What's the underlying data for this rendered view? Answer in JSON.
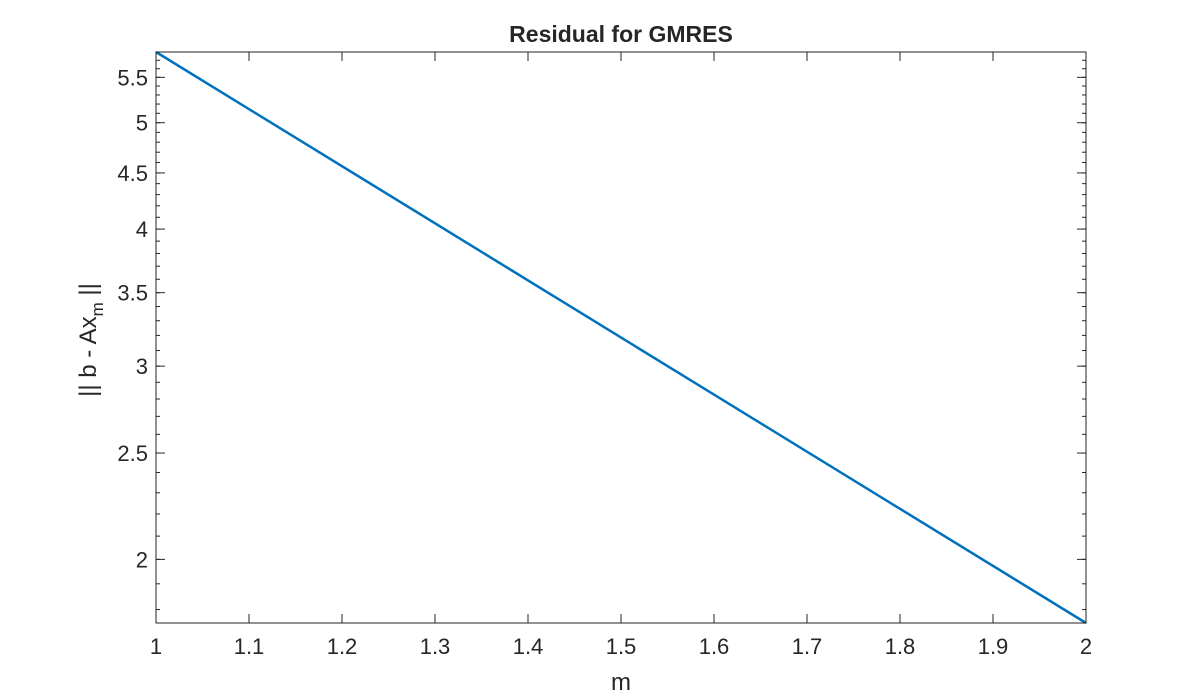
{
  "chart_data": {
    "type": "line",
    "title": "Residual for GMRES",
    "xlabel": "m",
    "ylabel": {
      "main": "|| b - Ax",
      "subscript": "m",
      "suffix": " ||"
    },
    "xlim": [
      1,
      2
    ],
    "ylim": [
      1.75,
      5.8
    ],
    "yscale": "log",
    "grid": false,
    "x_ticks": [
      1,
      1.1,
      1.2,
      1.3,
      1.4,
      1.5,
      1.6,
      1.7,
      1.8,
      1.9,
      2
    ],
    "x_tick_labels": [
      "1",
      "1.1",
      "1.2",
      "1.3",
      "1.4",
      "1.5",
      "1.6",
      "1.7",
      "1.8",
      "1.9",
      "2"
    ],
    "y_ticks": [
      2,
      2.5,
      3,
      3.5,
      4,
      4.5,
      5,
      5.5
    ],
    "y_tick_labels": [
      "2",
      "2.5",
      "3",
      "3.5",
      "4",
      "4.5",
      "5",
      "5.5"
    ],
    "series": [
      {
        "x": [
          1,
          2
        ],
        "y": [
          5.8,
          1.75
        ],
        "color": "#0072BD"
      }
    ]
  }
}
